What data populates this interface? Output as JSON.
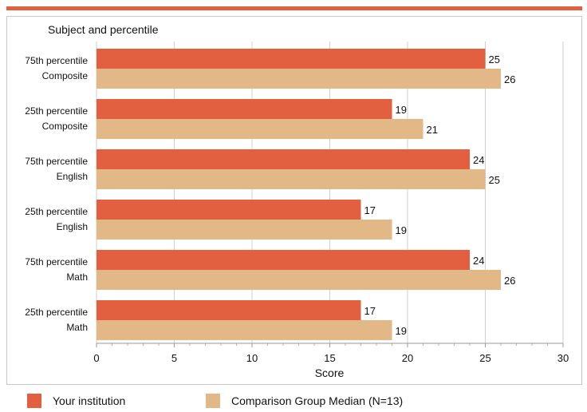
{
  "chart_data": {
    "type": "bar",
    "orientation": "horizontal",
    "y_axis_title": "Subject and percentile",
    "xlabel": "Score",
    "xlim": [
      0,
      30
    ],
    "x_ticks": [
      0,
      5,
      10,
      15,
      20,
      25,
      30
    ],
    "grid": true,
    "legend_position": "bottom",
    "categories": [
      {
        "line1": "75th percentile",
        "line2": "Composite"
      },
      {
        "line1": "25th percentile",
        "line2": "Composite"
      },
      {
        "line1": "75th percentile",
        "line2": "English"
      },
      {
        "line1": "25th percentile",
        "line2": "English"
      },
      {
        "line1": "75th percentile",
        "line2": "Math"
      },
      {
        "line1": "25th percentile",
        "line2": "Math"
      }
    ],
    "series": [
      {
        "name": "Your institution",
        "color": "#e2603f",
        "values": [
          25,
          19,
          24,
          17,
          24,
          17
        ]
      },
      {
        "name": "Comparison Group Median (N=13)",
        "color": "#e2b887",
        "values": [
          26,
          21,
          25,
          19,
          26,
          19
        ]
      }
    ]
  },
  "colors": {
    "accent_rule": "#e2603f",
    "gridline": "#cfcfcf"
  }
}
